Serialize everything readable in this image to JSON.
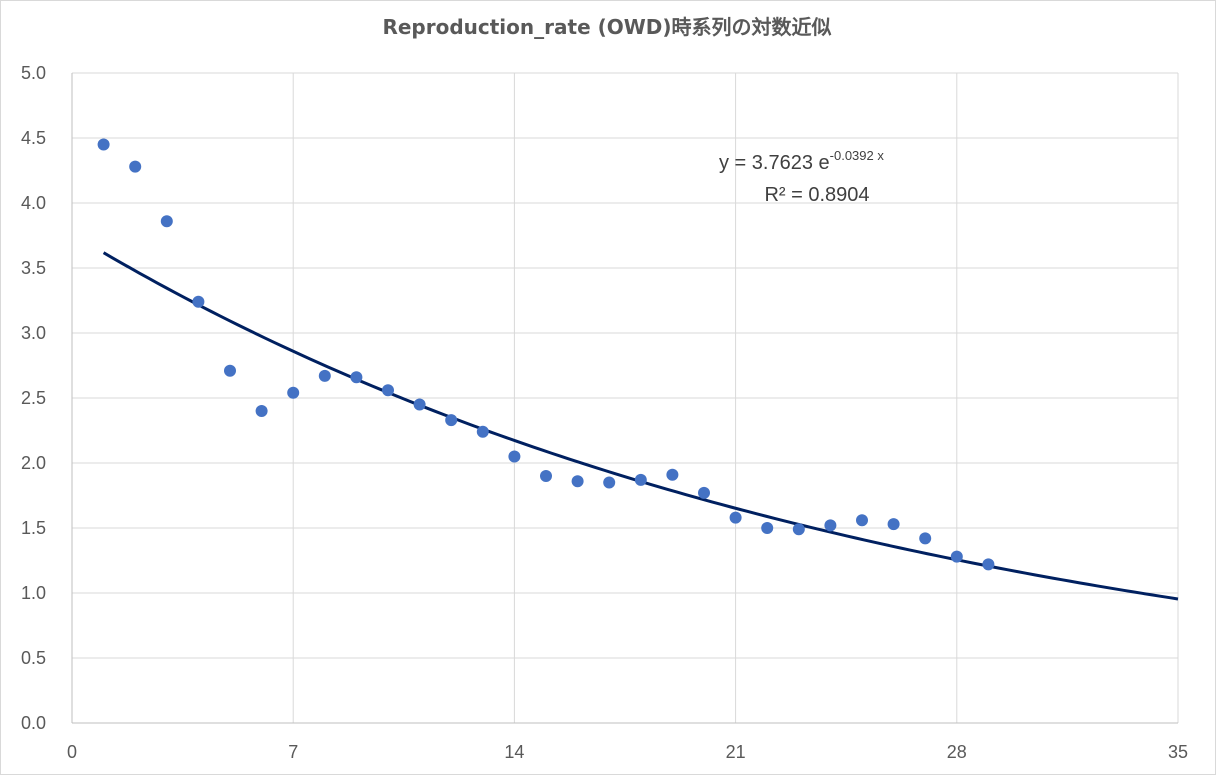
{
  "chart_data": {
    "type": "scatter",
    "title": "Reproduction_rate (OWD)時系列の対数近似",
    "xlabel": "",
    "ylabel": "",
    "xlim": [
      0,
      35
    ],
    "ylim": [
      0,
      5
    ],
    "x_ticks": [
      0,
      7,
      14,
      21,
      28,
      35
    ],
    "x_tick_labels": [
      "0",
      "7",
      "14",
      "21",
      "28",
      "35"
    ],
    "y_ticks": [
      0,
      0.5,
      1,
      1.5,
      2,
      2.5,
      3,
      3.5,
      4,
      4.5,
      5
    ],
    "y_tick_labels": [
      "0.0",
      "0.5",
      "1.0",
      "1.5",
      "2.0",
      "2.5",
      "3.0",
      "3.5",
      "4.0",
      "4.5",
      "5.0"
    ],
    "grid": true,
    "series": [
      {
        "color": "#4472C4",
        "x": [
          1,
          2,
          3,
          4,
          5,
          6,
          7,
          8,
          9,
          10,
          11,
          12,
          13,
          14,
          15,
          16,
          17,
          18,
          19,
          20,
          21,
          22,
          23,
          24,
          25,
          26,
          27,
          28,
          29
        ],
        "y": [
          4.45,
          4.28,
          3.86,
          3.24,
          2.71,
          2.4,
          2.54,
          2.67,
          2.66,
          2.56,
          2.45,
          2.33,
          2.24,
          2.05,
          1.9,
          1.86,
          1.85,
          1.87,
          1.91,
          1.77,
          1.58,
          1.5,
          1.49,
          1.52,
          1.56,
          1.53,
          1.42,
          1.28,
          1.22
        ]
      }
    ],
    "trendline": {
      "type": "exponential",
      "a": 3.7623,
      "b": -0.0392,
      "x_range": [
        1,
        35
      ],
      "color": "#002060"
    },
    "annotations": {
      "equation_base": "y = 3.7623 e",
      "equation_exponent": "-0.0392 x",
      "r_squared": "R² = 0.8904"
    }
  }
}
